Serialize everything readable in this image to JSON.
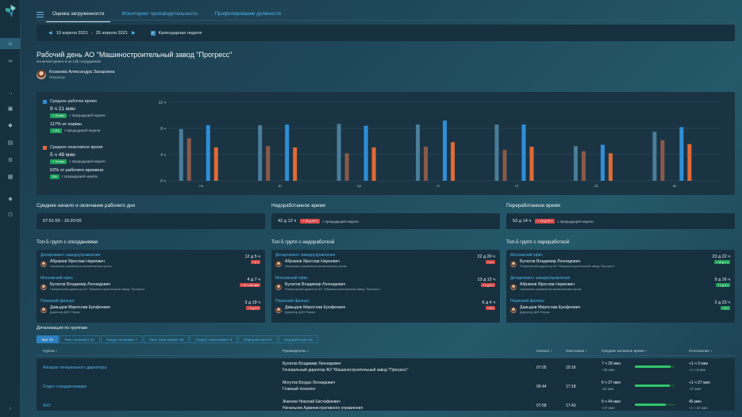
{
  "nav": {
    "icons": [
      "home-icon",
      "share-icon",
      "login-icon",
      "lock-icon",
      "diamond-icon",
      "list-icon",
      "settings-icon",
      "grid-icon",
      "user-icon",
      "power-icon"
    ]
  },
  "tabs": [
    "Оценка загруженности",
    "Мониторинг производительности",
    "Профилирование должности"
  ],
  "date_range": {
    "start": "19 апреля 2021",
    "sep": "-",
    "end": "25 апреля 2021",
    "calendar_week_label": "Календарная неделя"
  },
  "page": {
    "title": "Рабочий день АО \"Машиностроительный завод \"Прогресс\"",
    "subtitle": "На мониторинге 8 из 135 сотрудников"
  },
  "person": {
    "name": "Козакова Александра Захаровна",
    "role": "Оператор"
  },
  "legend": {
    "active": {
      "label": "Среднее рабочее время",
      "value": "9 ч 21 мин",
      "delta": "+ 15 мин",
      "delta_note": "с предыдущей недели",
      "norm": "117% от нормы",
      "norm_delta": "+ 4%",
      "norm_note": "с предыдущей недели"
    },
    "idle": {
      "label": "Среднее неактивное время",
      "value": "5 ч 49 мин",
      "delta": "+ 15 мин",
      "delta_note": "с предыдущей недели",
      "share": "62% от рабочего времени",
      "share_delta": "3%",
      "share_note": "с предыдущей недели"
    }
  },
  "chart_data": {
    "type": "bar",
    "categories": [
      "пн",
      "вт",
      "ср",
      "чт",
      "пт",
      "сб",
      "вс"
    ],
    "yticks": [
      "12 ч",
      "8 ч",
      "4 ч",
      "0 ч"
    ],
    "ylim": [
      0,
      12
    ],
    "series": [
      {
        "name": "Среднее рабочее время",
        "color": "#2f8fd8",
        "values": [
          8.5,
          8.6,
          8.4,
          9.2,
          8.6,
          5.5,
          8.2
        ]
      },
      {
        "name": "Среднее неактивное время",
        "color": "#e06a36",
        "values": [
          5.1,
          5.1,
          5.1,
          5.9,
          5.2,
          4.2,
          5.6
        ]
      }
    ],
    "extra_bars": {
      "color": "#4a7d98",
      "values": [
        7.9,
        8.5,
        8.7,
        8.6,
        8.6,
        5.3,
        7.5
      ]
    },
    "brown_bars": {
      "color": "#8a5a48",
      "values": [
        6.5,
        5.3,
        4.2,
        5.2,
        4.7,
        4.5,
        6.2
      ]
    }
  },
  "summary": {
    "start_end": {
      "title": "Среднее начало и окончание рабочего дня",
      "value": "07:51:00 - 16:20:00"
    },
    "under": {
      "title": "Недоработанное время",
      "value": "42 д 12 ч",
      "badge": "+ 15 д 20 ч",
      "note": "с предыдущей недели"
    },
    "over": {
      "title": "Переработанное время",
      "value": "53 д 14 ч",
      "badge": "+ 15 д 20 ч",
      "note": "с предыдущей недели"
    }
  },
  "tops": [
    {
      "title": "Топ-5 групп с опозданиями",
      "items": [
        {
          "dept": "Департамент заводоуправления",
          "name": "Абрамов Ярослав Наумович",
          "role": "Начальник управления механических цехов",
          "val": "12 д 5 ч",
          "badge": "+ 8 ч"
        },
        {
          "dept": "Московский офис",
          "name": "Булатов Владимир Леонидович",
          "role": "Генеральный директор АО \"Машиностроительный завод \"Прогресс\"",
          "val": "4 д 7 ч",
          "badge": "+ 22 ч 46 мин"
        },
        {
          "dept": "Пермский филиал",
          "name": "Давыдов Мирослав Ерофеевич",
          "role": "Директор ДЗО Пермь",
          "val": "3 д 19 ч",
          "badge": "+ 1 д 3 ч"
        }
      ]
    },
    {
      "title": "Топ-5 групп с недоработкой",
      "items": [
        {
          "dept": "Департамент заводоуправления",
          "name": "Абрамов Ярослав Наумович",
          "role": "Начальник управления механических цехов",
          "val": "22 д 20 ч",
          "badge": "+ 8 ч"
        },
        {
          "dept": "Московский офис",
          "name": "Булатов Владимир Леонидович",
          "role": "Генеральный директор АО \"Машиностроительный завод \"Прогресс\"",
          "val": "13 д 12 ч",
          "badge": "+ 1 д 6 ч"
        },
        {
          "dept": "Пермский филиал",
          "name": "Давыдов Мирослав Ерофеевич",
          "role": "Директор ДЗО Пермь",
          "val": "6 д 4 ч",
          "badge": "+ 8 ч"
        }
      ]
    },
    {
      "title": "Топ-5 групп с переработкой",
      "items": [
        {
          "dept": "Московский офис",
          "name": "Булатов Владимир Леонидович",
          "role": "Генеральный директор АО \"Машиностроительный завод \"Прогресс\"",
          "val": "23 д 22 ч",
          "badge": "+ 10 д 1 ч"
        },
        {
          "dept": "Департамент заводоуправления",
          "name": "Абрамов Ярослав Наумович",
          "role": "Начальник управления механических цехов",
          "val": "9 д 16 ч",
          "badge": "+ 1 д 6 ч"
        },
        {
          "dept": "Пермский филиал",
          "name": "Давыдов Мирослав Ерофеевич",
          "role": "Директор ДЗО Пермь",
          "val": "2 д 23 ч",
          "badge": "+ 5 ч"
        }
      ]
    }
  ],
  "details": {
    "title": "Детализация по группам",
    "filters": [
      "Все 72",
      "Рано начинают 62",
      "Поздно начинают 7",
      "Рано заканчивают 66",
      "Поздно заканчивают 9",
      "Переработали 27",
      "Недоработали 40"
    ],
    "headers": {
      "group": "Группа",
      "head": "Руководитель",
      "start": "Начало",
      "end": "Окончание",
      "active": "Среднее активное время",
      "dev": "Отклонение"
    },
    "rows": [
      {
        "group": "Аппарат генерального директора",
        "head": "Булатов Владимир Леонидович",
        "head_role": "Генеральный директор АО \"Машиностроительный завод \"Прогресс\"",
        "start": "07:05",
        "end": "19:16",
        "active": "7 ч 28 мин",
        "active_delta": "+25 мин",
        "fill": 0.9,
        "dev": "+1 ч 3 мин",
        "dev_sub": "+1 ч 8 мин"
      },
      {
        "group": "Отдел стандартизации",
        "head": "Могутов Богдан Леонидович",
        "head_role": "Главный технолог",
        "start": "06:44",
        "end": "17:18",
        "active": "6 ч 37 мин",
        "active_delta": "-20 мин",
        "fill": 0.88,
        "dev": "+1 ч 27 мин",
        "dev_sub": "-27 мин"
      },
      {
        "group": "АХУ",
        "head": "Жженов Николай Евстафиевич",
        "head_role": "Начальник Административного управления",
        "start": "07:58",
        "end": "17:43",
        "active": "5 ч 44 мин",
        "active_delta": "+47 мин",
        "fill": 0.78,
        "dev": "45 мин",
        "dev_sub": "+1 ч 20 мин"
      }
    ]
  }
}
